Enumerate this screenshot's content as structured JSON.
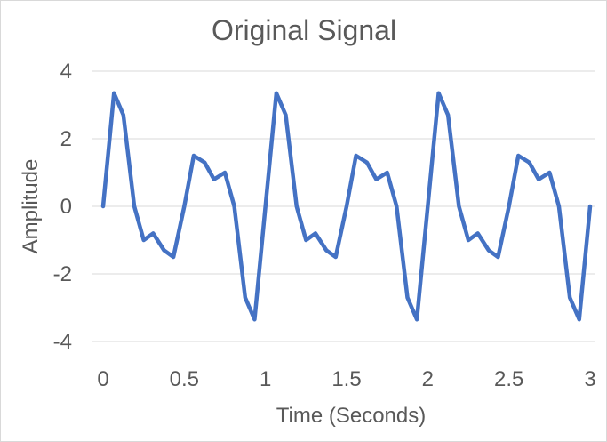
{
  "chart_data": {
    "type": "line",
    "title": "Original Signal",
    "xlabel": "Time (Seconds)",
    "ylabel": "Amplitude",
    "xlim": [
      0,
      3
    ],
    "ylim": [
      -4,
      4
    ],
    "x_ticks": [
      "0",
      "0.5",
      "1",
      "1.5",
      "2",
      "2.5",
      "3"
    ],
    "y_ticks": [
      "4",
      "2",
      "0",
      "-2",
      "-4"
    ],
    "grid": "horizontal",
    "legend": "none",
    "series": [
      {
        "color": "#4472c4",
        "x": [
          0,
          0.067,
          0.125,
          0.192,
          0.25,
          0.308,
          0.375,
          0.433,
          0.5,
          0.558,
          0.625,
          0.683,
          0.75,
          0.808,
          0.875,
          0.933,
          1.0,
          1.067,
          1.125,
          1.192,
          1.25,
          1.308,
          1.375,
          1.433,
          1.5,
          1.558,
          1.625,
          1.683,
          1.75,
          1.808,
          1.875,
          1.933,
          2.0,
          2.067,
          2.125,
          2.192,
          2.25,
          2.308,
          2.375,
          2.433,
          2.5,
          2.558,
          2.625,
          2.683,
          2.75,
          2.808,
          2.875,
          2.933,
          3.0
        ],
        "y": [
          0,
          3.35,
          2.7,
          0,
          -1.0,
          -0.8,
          -1.3,
          -1.5,
          0,
          1.5,
          1.3,
          0.8,
          1.0,
          0,
          -2.7,
          -3.35,
          0,
          3.35,
          2.7,
          0,
          -1.0,
          -0.8,
          -1.3,
          -1.5,
          0,
          1.5,
          1.3,
          0.8,
          1.0,
          0,
          -2.7,
          -3.35,
          0,
          3.35,
          2.7,
          0,
          -1.0,
          -0.8,
          -1.3,
          -1.5,
          0,
          1.5,
          1.3,
          0.8,
          1.0,
          0,
          -2.7,
          -3.35,
          0
        ]
      }
    ]
  }
}
